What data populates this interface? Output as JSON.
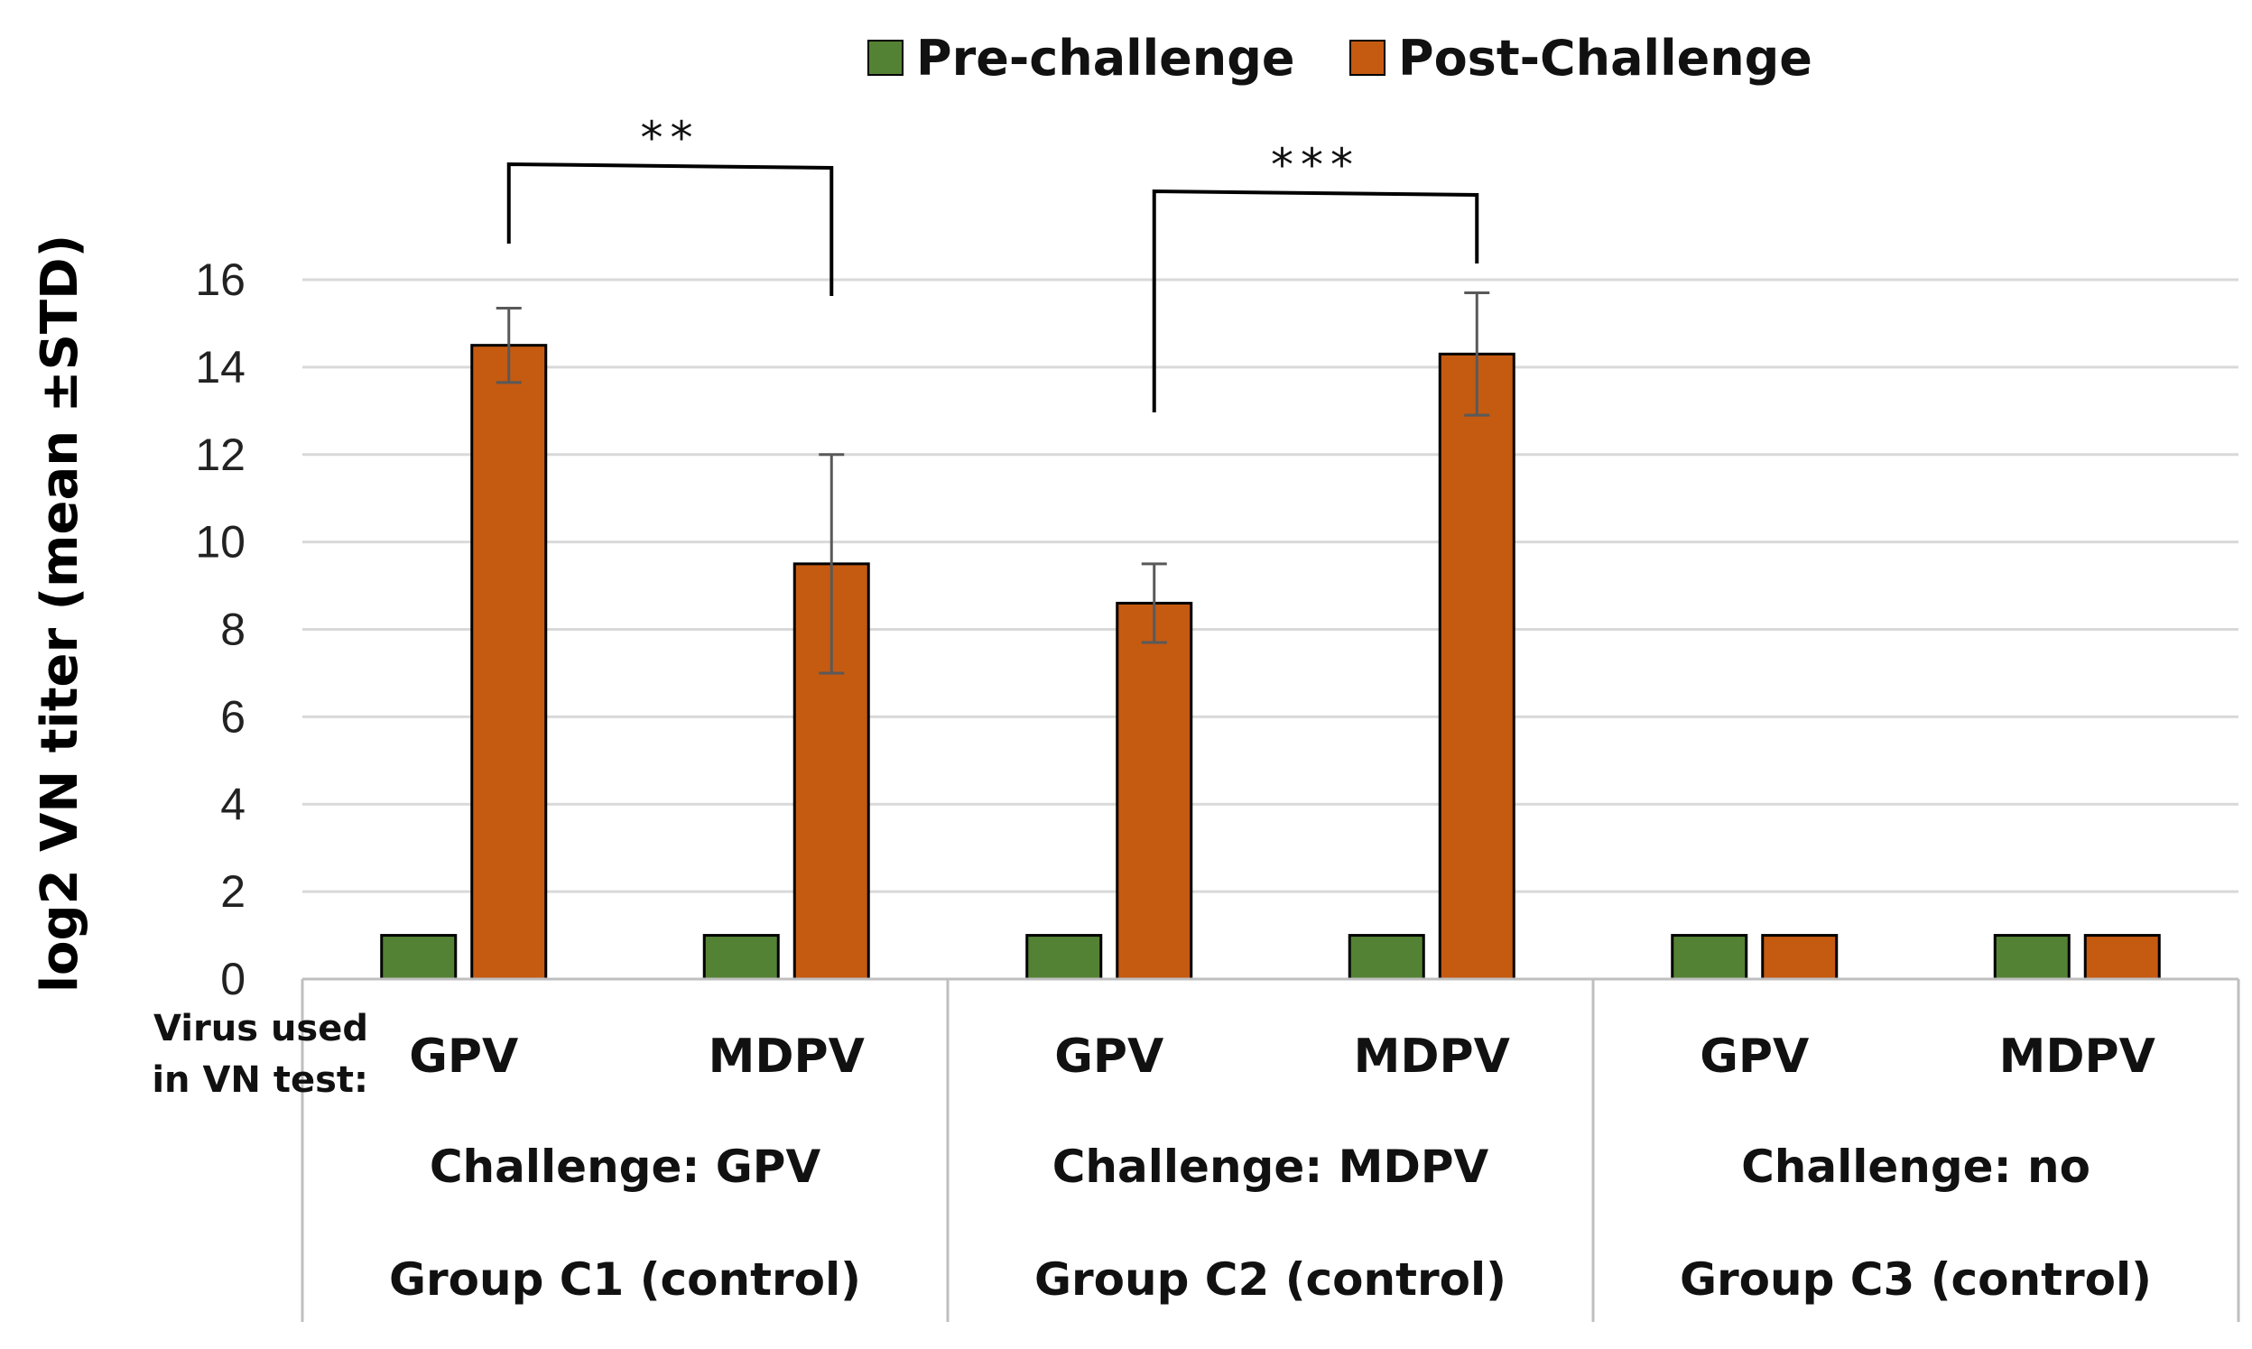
{
  "chart_data": {
    "type": "bar",
    "ylabel": "log2 VN titer (mean ±STD)",
    "ylim": [
      0,
      16
    ],
    "yticks": [
      0,
      2,
      4,
      6,
      8,
      10,
      12,
      14,
      16
    ],
    "grid": true,
    "legend_position": "top-center",
    "row_label_line1": "Virus used",
    "row_label_line2": "in VN test:",
    "categories": [
      "GPV",
      "MDPV",
      "GPV",
      "MDPV",
      "GPV",
      "MDPV"
    ],
    "groups": [
      {
        "challenge": "Challenge: GPV",
        "name": "Group C1 (control)"
      },
      {
        "challenge": "Challenge: MDPV",
        "name": "Group C2 (control)"
      },
      {
        "challenge": "Challenge:  no",
        "name": "Group C3 (control)"
      }
    ],
    "series": [
      {
        "name": "Pre-challenge",
        "color": "#548235",
        "values": [
          1,
          1,
          1,
          1,
          1,
          1
        ],
        "errors": [
          0,
          0,
          0,
          0,
          0,
          0
        ]
      },
      {
        "name": "Post-Challenge",
        "color": "#c55a11",
        "values": [
          14.5,
          9.5,
          8.6,
          14.3,
          1,
          1
        ],
        "errors": [
          0.85,
          2.5,
          0.9,
          1.4,
          0,
          0
        ]
      }
    ],
    "annotations": [
      {
        "label": "**",
        "from_category": 0,
        "to_category": 1
      },
      {
        "label": "***",
        "from_category": 2,
        "to_category": 3
      }
    ]
  }
}
